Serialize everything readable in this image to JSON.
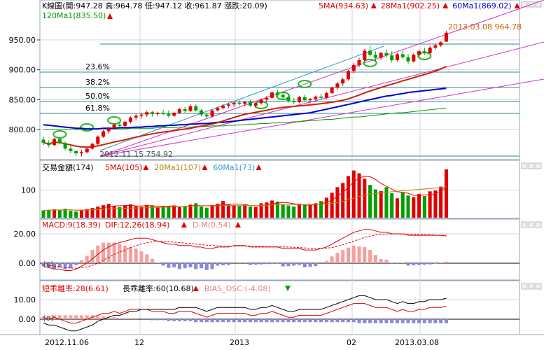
{
  "colors": {
    "up": "#e00000",
    "down": "#00a000",
    "ma5": "#ff0000",
    "ma20": "#cc2200",
    "ma60": "#0000cc",
    "ma120": "#009900",
    "grid": "#cfd6e6",
    "fib": "#2b8a8a",
    "trend": "#cc33cc",
    "channel": "#3399cc",
    "axis_text": "#000000",
    "annot": "#c86400",
    "gold": "#b8860b"
  },
  "panels": {
    "price": {
      "header": "K線圖(開:947.28 高:964.78 低:947.12 收:961.87 漲跌:20.09)",
      "legend": [
        {
          "text": "5MA(934.63)",
          "color": "#e00000"
        },
        {
          "text": "28Ma1(902.25)",
          "color": "#e00000"
        },
        {
          "text": "60Ma1(869.02)",
          "color": "#0000cc"
        }
      ],
      "legend2": {
        "text": "120Ma1(835.50)",
        "color": "#009900"
      },
      "yticks": [
        "950.00",
        "900.00",
        "850.00",
        "800.00"
      ],
      "fib_levels": [
        "23.6%",
        "38.2%",
        "50.0%",
        "61.8%"
      ],
      "high_label": "2013.03.08  964.78",
      "low_label": "2012.11.15  754.92"
    },
    "volume": {
      "header": "交易金額(174)",
      "legend": [
        {
          "text": "5MA(105)",
          "color": "#e00000"
        },
        {
          "text": "20Ma1(107)",
          "color": "#b8860b"
        },
        {
          "text": "60Ma1(73)",
          "color": "#3399cc"
        }
      ],
      "ytick": "100"
    },
    "macd": {
      "header": "MACD:9(18.39)",
      "legend": [
        {
          "text": "DIF:12,26(18.94)",
          "color": "#e00000"
        },
        {
          "text": "D-M(0.54)",
          "color": "#e88080"
        }
      ],
      "yticks": [
        "20.00",
        "0.00"
      ],
      "zero_marker": "[0]"
    },
    "bias": {
      "header": "短乖離率:28(6.61)",
      "legend": [
        {
          "text": "長乖離率:60(10.68)",
          "color": "#000000"
        },
        {
          "text": "BIAS_OSC:(-4.08)",
          "color": "#e88080"
        }
      ],
      "yticks": [
        "10.00",
        "0.00"
      ],
      "zero_marker": "[0]"
    }
  },
  "xaxis": {
    "labels": [
      "2012.11.06",
      "12",
      "2013",
      "02",
      "2013.03.08"
    ]
  },
  "chart_data": {
    "type": "candlestick",
    "period": "daily",
    "x_start": "2012-11-06",
    "x_end": "2013-03-08",
    "ohlc": [
      {
        "o": 783,
        "h": 788,
        "l": 774,
        "c": 778
      },
      {
        "o": 778,
        "h": 782,
        "l": 770,
        "c": 774
      },
      {
        "o": 774,
        "h": 786,
        "l": 772,
        "c": 784
      },
      {
        "o": 784,
        "h": 787,
        "l": 775,
        "c": 777
      },
      {
        "o": 777,
        "h": 780,
        "l": 765,
        "c": 768
      },
      {
        "o": 768,
        "h": 772,
        "l": 760,
        "c": 764
      },
      {
        "o": 764,
        "h": 766,
        "l": 755,
        "c": 760
      },
      {
        "o": 760,
        "h": 766,
        "l": 755,
        "c": 762
      },
      {
        "o": 762,
        "h": 770,
        "l": 760,
        "c": 768
      },
      {
        "o": 768,
        "h": 778,
        "l": 766,
        "c": 776
      },
      {
        "o": 776,
        "h": 790,
        "l": 774,
        "c": 788
      },
      {
        "o": 788,
        "h": 799,
        "l": 786,
        "c": 797
      },
      {
        "o": 797,
        "h": 805,
        "l": 793,
        "c": 802
      },
      {
        "o": 802,
        "h": 810,
        "l": 800,
        "c": 808
      },
      {
        "o": 808,
        "h": 813,
        "l": 803,
        "c": 806
      },
      {
        "o": 806,
        "h": 815,
        "l": 804,
        "c": 813
      },
      {
        "o": 813,
        "h": 822,
        "l": 810,
        "c": 820
      },
      {
        "o": 820,
        "h": 826,
        "l": 816,
        "c": 823
      },
      {
        "o": 823,
        "h": 828,
        "l": 818,
        "c": 825
      },
      {
        "o": 825,
        "h": 832,
        "l": 821,
        "c": 829
      },
      {
        "o": 829,
        "h": 831,
        "l": 822,
        "c": 826
      },
      {
        "o": 826,
        "h": 830,
        "l": 822,
        "c": 828
      },
      {
        "o": 828,
        "h": 833,
        "l": 824,
        "c": 826
      },
      {
        "o": 826,
        "h": 832,
        "l": 820,
        "c": 823
      },
      {
        "o": 823,
        "h": 830,
        "l": 821,
        "c": 828
      },
      {
        "o": 828,
        "h": 836,
        "l": 826,
        "c": 834
      },
      {
        "o": 834,
        "h": 838,
        "l": 828,
        "c": 831
      },
      {
        "o": 831,
        "h": 842,
        "l": 829,
        "c": 839
      },
      {
        "o": 839,
        "h": 842,
        "l": 830,
        "c": 832
      },
      {
        "o": 832,
        "h": 834,
        "l": 822,
        "c": 825
      },
      {
        "o": 825,
        "h": 828,
        "l": 818,
        "c": 822
      },
      {
        "o": 822,
        "h": 834,
        "l": 820,
        "c": 832
      },
      {
        "o": 832,
        "h": 838,
        "l": 830,
        "c": 836
      },
      {
        "o": 836,
        "h": 843,
        "l": 833,
        "c": 840
      },
      {
        "o": 840,
        "h": 845,
        "l": 836,
        "c": 842
      },
      {
        "o": 842,
        "h": 848,
        "l": 838,
        "c": 845
      },
      {
        "o": 845,
        "h": 849,
        "l": 840,
        "c": 843
      },
      {
        "o": 843,
        "h": 848,
        "l": 839,
        "c": 846
      },
      {
        "o": 846,
        "h": 849,
        "l": 838,
        "c": 840
      },
      {
        "o": 840,
        "h": 846,
        "l": 836,
        "c": 844
      },
      {
        "o": 844,
        "h": 852,
        "l": 842,
        "c": 850
      },
      {
        "o": 850,
        "h": 856,
        "l": 846,
        "c": 853
      },
      {
        "o": 853,
        "h": 864,
        "l": 851,
        "c": 862
      },
      {
        "o": 862,
        "h": 866,
        "l": 855,
        "c": 858
      },
      {
        "o": 858,
        "h": 862,
        "l": 850,
        "c": 854
      },
      {
        "o": 854,
        "h": 857,
        "l": 845,
        "c": 848
      },
      {
        "o": 848,
        "h": 853,
        "l": 842,
        "c": 846
      },
      {
        "o": 846,
        "h": 856,
        "l": 844,
        "c": 854
      },
      {
        "o": 854,
        "h": 858,
        "l": 846,
        "c": 849
      },
      {
        "o": 849,
        "h": 853,
        "l": 844,
        "c": 851
      },
      {
        "o": 851,
        "h": 857,
        "l": 848,
        "c": 855
      },
      {
        "o": 855,
        "h": 860,
        "l": 851,
        "c": 853
      },
      {
        "o": 853,
        "h": 863,
        "l": 851,
        "c": 861
      },
      {
        "o": 861,
        "h": 872,
        "l": 859,
        "c": 870
      },
      {
        "o": 870,
        "h": 880,
        "l": 866,
        "c": 877
      },
      {
        "o": 877,
        "h": 887,
        "l": 873,
        "c": 884
      },
      {
        "o": 884,
        "h": 900,
        "l": 882,
        "c": 898
      },
      {
        "o": 898,
        "h": 912,
        "l": 894,
        "c": 908
      },
      {
        "o": 908,
        "h": 920,
        "l": 904,
        "c": 916
      },
      {
        "o": 916,
        "h": 935,
        "l": 914,
        "c": 932
      },
      {
        "o": 932,
        "h": 940,
        "l": 922,
        "c": 925
      },
      {
        "o": 925,
        "h": 931,
        "l": 915,
        "c": 920
      },
      {
        "o": 920,
        "h": 930,
        "l": 916,
        "c": 928
      },
      {
        "o": 928,
        "h": 934,
        "l": 920,
        "c": 924
      },
      {
        "o": 924,
        "h": 931,
        "l": 912,
        "c": 916
      },
      {
        "o": 916,
        "h": 928,
        "l": 914,
        "c": 926
      },
      {
        "o": 926,
        "h": 932,
        "l": 918,
        "c": 921
      },
      {
        "o": 921,
        "h": 926,
        "l": 910,
        "c": 914
      },
      {
        "o": 914,
        "h": 928,
        "l": 912,
        "c": 925
      },
      {
        "o": 925,
        "h": 934,
        "l": 922,
        "c": 931
      },
      {
        "o": 931,
        "h": 937,
        "l": 925,
        "c": 928
      },
      {
        "o": 928,
        "h": 940,
        "l": 926,
        "c": 937
      },
      {
        "o": 937,
        "h": 944,
        "l": 934,
        "c": 941
      },
      {
        "o": 941,
        "h": 948,
        "l": 938,
        "c": 946
      },
      {
        "o": 947,
        "h": 965,
        "l": 947,
        "c": 962
      }
    ],
    "ma5_last": 934.63,
    "ma28_last": 902.25,
    "ma60_last": 869.02,
    "ma120_last": 835.5,
    "ma60_series": [
      808,
      807,
      806,
      805,
      804,
      803,
      802,
      802,
      801,
      801,
      801,
      802,
      802,
      802,
      803,
      803,
      803,
      804,
      804,
      805,
      805,
      806,
      806,
      807,
      807,
      808,
      808,
      809,
      809,
      810,
      810,
      811,
      812,
      812,
      813,
      814,
      815,
      816,
      817,
      818,
      819,
      820,
      821,
      822,
      823,
      824,
      825,
      826,
      827,
      828,
      830,
      832,
      834,
      836,
      838,
      840,
      842,
      844,
      846,
      848,
      850,
      852,
      854,
      856,
      857,
      859,
      860,
      862,
      863,
      864,
      865,
      866,
      867,
      868,
      869
    ],
    "ma120_series": [
      800,
      800,
      800,
      800,
      800,
      800,
      800,
      800,
      800,
      800,
      801,
      801,
      801,
      801,
      801,
      801,
      802,
      802,
      802,
      802,
      802,
      803,
      803,
      803,
      803,
      804,
      804,
      804,
      805,
      805,
      805,
      806,
      806,
      806,
      807,
      807,
      808,
      808,
      809,
      809,
      810,
      810,
      811,
      811,
      812,
      812,
      813,
      813,
      814,
      815,
      815,
      816,
      817,
      817,
      818,
      819,
      820,
      821,
      821,
      822,
      823,
      824,
      825,
      826,
      827,
      828,
      828,
      829,
      830,
      831,
      832,
      833,
      834,
      835,
      835.5
    ],
    "volume": [
      26,
      28,
      30,
      27,
      32,
      25,
      22,
      29,
      31,
      35,
      40,
      45,
      50,
      42,
      38,
      44,
      48,
      41,
      39,
      46,
      43,
      37,
      42,
      40,
      44,
      38,
      41,
      47,
      52,
      40,
      36,
      45,
      50,
      60,
      48,
      44,
      42,
      46,
      40,
      38,
      52,
      55,
      62,
      58,
      48,
      44,
      40,
      50,
      47,
      45,
      52,
      60,
      72,
      90,
      110,
      125,
      150,
      170,
      160,
      140,
      118,
      102,
      96,
      110,
      88,
      70,
      92,
      80,
      74,
      86,
      78,
      95,
      98,
      112,
      174
    ],
    "vol_ma5_last": 105,
    "vol_ma20_last": 107,
    "vol_ma60_last": 73,
    "macd": {
      "dif_last": 18.94,
      "macd_last": 18.39,
      "osc_last": 0.54,
      "dif": [
        -2,
        -3,
        -4,
        -4,
        -5,
        -5,
        -4,
        -2,
        0,
        3,
        6,
        9,
        11,
        13,
        14,
        15,
        16,
        17,
        17,
        17,
        16,
        15,
        14,
        13,
        13,
        12,
        12,
        12,
        11,
        11,
        10,
        10,
        11,
        11,
        11,
        12,
        12,
        12,
        11,
        11,
        11,
        11,
        11,
        11,
        10,
        10,
        10,
        10,
        9,
        9,
        9,
        10,
        11,
        13,
        15,
        17,
        19,
        21,
        22,
        23,
        23,
        22,
        21,
        21,
        20,
        20,
        20,
        19,
        19,
        19,
        19,
        19,
        19,
        19,
        18.94
      ],
      "dem": [
        -1,
        -1.5,
        -2,
        -2.5,
        -3,
        -3.3,
        -3.4,
        -3,
        -2.5,
        -1.5,
        0,
        2,
        4,
        6,
        7.5,
        9,
        10.5,
        12,
        13,
        14,
        14.5,
        14.8,
        14.8,
        14.6,
        14.4,
        14,
        13.7,
        13.4,
        13,
        12.7,
        12.3,
        12,
        11.8,
        11.7,
        11.6,
        11.6,
        11.7,
        11.7,
        11.6,
        11.5,
        11.4,
        11.3,
        11.2,
        11.2,
        11.1,
        11,
        10.8,
        10.6,
        10.4,
        10.2,
        10,
        10,
        10.2,
        10.7,
        11.5,
        12.5,
        13.7,
        15,
        16.3,
        17.5,
        18.5,
        19.2,
        19.6,
        19.8,
        19.9,
        19.9,
        19.9,
        19.8,
        19.7,
        19.6,
        19.5,
        19.4,
        19.2,
        18.8,
        18.39
      ]
    },
    "bias": {
      "short_last": 6.61,
      "long_last": 10.68,
      "osc_last": -4.08,
      "short": [
        1,
        0,
        1,
        0,
        -1,
        -2,
        -2,
        -1,
        0,
        1,
        2,
        3,
        3,
        4,
        3,
        4,
        5,
        5,
        5,
        5,
        4,
        4,
        4,
        3,
        3,
        4,
        4,
        4,
        3,
        2,
        1,
        2,
        3,
        3,
        3,
        3,
        3,
        3,
        2,
        2,
        3,
        3,
        4,
        3,
        2,
        1,
        1,
        2,
        2,
        2,
        2,
        2,
        3,
        4,
        5,
        6,
        7,
        8,
        8,
        8,
        7,
        6,
        6,
        6,
        5,
        4,
        5,
        4,
        4,
        5,
        5,
        6,
        6,
        6,
        6.61
      ],
      "long": [
        -2,
        -3,
        -3,
        -4,
        -5,
        -6,
        -6,
        -5,
        -4,
        -3,
        -1,
        0,
        1,
        2,
        2,
        3,
        4,
        4,
        5,
        5,
        5,
        5,
        5,
        5,
        5,
        6,
        6,
        6,
        6,
        5,
        4,
        5,
        6,
        6,
        6,
        6,
        6,
        6,
        5,
        5,
        6,
        6,
        7,
        6,
        5,
        4,
        4,
        5,
        5,
        5,
        5,
        5,
        6,
        7,
        8,
        9,
        10,
        11,
        12,
        12,
        11,
        10,
        10,
        10,
        9,
        8,
        9,
        8,
        8,
        9,
        9,
        10,
        10,
        10,
        10.68
      ]
    }
  }
}
